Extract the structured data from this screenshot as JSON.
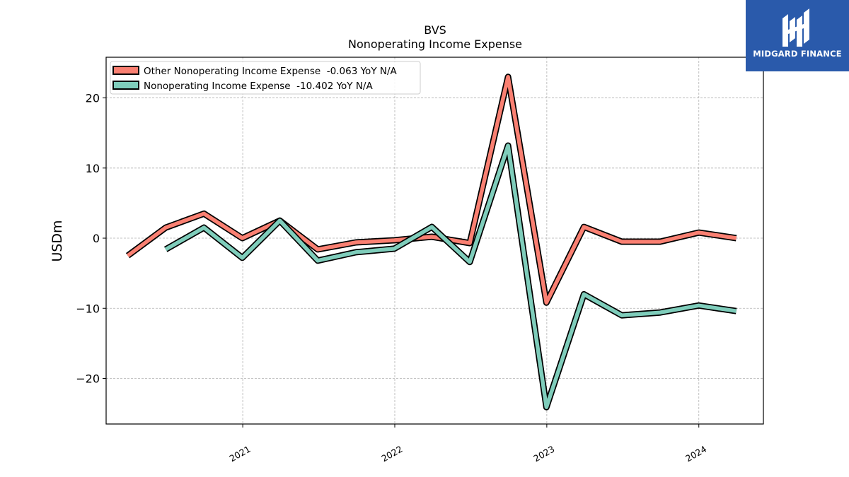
{
  "chart_data": {
    "type": "line",
    "title": "BVS",
    "subtitle": "Nonoperating Income Expense",
    "ylabel": "USDm",
    "xlabel": "",
    "ylim": [
      -26.5,
      25.8
    ],
    "xlim": [
      "2020-02-08",
      "2024-06-04"
    ],
    "yticks": [
      -20,
      -10,
      0,
      10,
      20
    ],
    "ytick_labels": [
      "−20",
      "−10",
      "0",
      "10",
      "20"
    ],
    "xticks": [
      "2021-01-01",
      "2022-01-01",
      "2023-01-01",
      "2024-01-01"
    ],
    "xtick_labels": [
      "2021",
      "2022",
      "2023",
      "2024"
    ],
    "grid": true,
    "legend_position": "top-left",
    "series": [
      {
        "name": "Other Nonoperating Income Expense  -0.063 YoY N/A",
        "color": "#fa8072",
        "points": [
          {
            "x": "2020-03-31",
            "y": -2.5
          },
          {
            "x": "2020-06-30",
            "y": 1.5
          },
          {
            "x": "2020-09-30",
            "y": 3.5
          },
          {
            "x": "2020-12-31",
            "y": 0.0
          },
          {
            "x": "2021-03-31",
            "y": 2.5
          },
          {
            "x": "2021-06-30",
            "y": -1.6
          },
          {
            "x": "2021-09-30",
            "y": -0.6
          },
          {
            "x": "2021-12-31",
            "y": -0.3
          },
          {
            "x": "2022-03-31",
            "y": 0.2
          },
          {
            "x": "2022-06-30",
            "y": -0.7
          },
          {
            "x": "2022-09-30",
            "y": 23.0
          },
          {
            "x": "2022-12-31",
            "y": -9.2
          },
          {
            "x": "2023-03-31",
            "y": 1.6
          },
          {
            "x": "2023-06-30",
            "y": -0.5
          },
          {
            "x": "2023-09-30",
            "y": -0.5
          },
          {
            "x": "2024-01-01",
            "y": 0.8
          },
          {
            "x": "2024-03-31",
            "y": 0.0
          }
        ]
      },
      {
        "name": "Nonoperating Income Expense  -10.402 YoY N/A",
        "color": "#7fcdbb",
        "points": [
          {
            "x": "2020-06-30",
            "y": -1.6
          },
          {
            "x": "2020-09-30",
            "y": 1.5
          },
          {
            "x": "2020-12-31",
            "y": -2.8
          },
          {
            "x": "2021-03-31",
            "y": 2.5
          },
          {
            "x": "2021-06-30",
            "y": -3.2
          },
          {
            "x": "2021-09-30",
            "y": -2.0
          },
          {
            "x": "2021-12-31",
            "y": -1.5
          },
          {
            "x": "2022-03-31",
            "y": 1.6
          },
          {
            "x": "2022-06-30",
            "y": -3.4
          },
          {
            "x": "2022-09-30",
            "y": 13.2
          },
          {
            "x": "2022-12-31",
            "y": -24.1
          },
          {
            "x": "2023-03-31",
            "y": -8.0
          },
          {
            "x": "2023-06-30",
            "y": -11.0
          },
          {
            "x": "2023-09-30",
            "y": -10.6
          },
          {
            "x": "2024-01-01",
            "y": -9.6
          },
          {
            "x": "2024-03-31",
            "y": -10.4
          }
        ]
      }
    ]
  },
  "logo": {
    "text": "MIDGARD FINANCE",
    "icon": "midgard-logo-icon"
  }
}
